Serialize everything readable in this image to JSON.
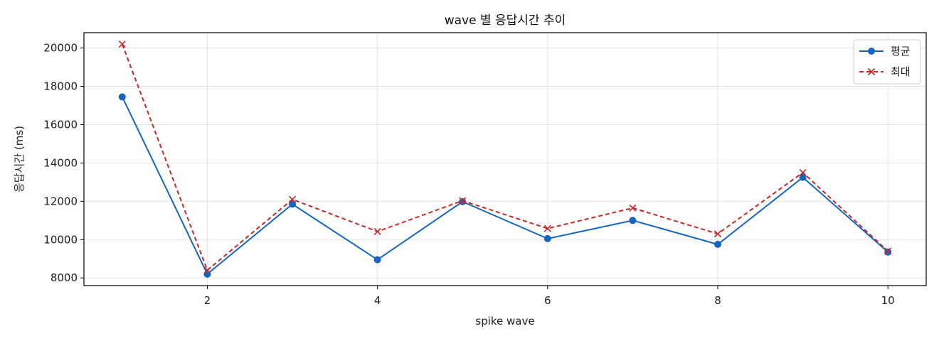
{
  "chart_data": {
    "type": "line",
    "title": "wave 별 응답시간 추이",
    "xlabel": "spike wave",
    "ylabel": "응답시간 (ms)",
    "x": [
      1,
      2,
      3,
      4,
      5,
      6,
      7,
      8,
      9,
      10
    ],
    "xlim": [
      0.55,
      10.45
    ],
    "ylim": [
      7600,
      20800
    ],
    "xticks": [
      2,
      4,
      6,
      8,
      10
    ],
    "yticks": [
      8000,
      10000,
      12000,
      14000,
      16000,
      18000,
      20000
    ],
    "grid": true,
    "legend_position": "top-right",
    "series": [
      {
        "name": "평균",
        "color": "#1565c0",
        "marker": "circle",
        "line_style": "solid",
        "values": [
          17450,
          8200,
          11850,
          8950,
          11980,
          10050,
          11000,
          9750,
          13250,
          9350
        ]
      },
      {
        "name": "최대",
        "color": "#c62828",
        "marker": "x",
        "line_style": "dashed",
        "values": [
          20200,
          8400,
          12100,
          10420,
          12030,
          10580,
          11650,
          10300,
          13500,
          9400
        ]
      }
    ]
  }
}
